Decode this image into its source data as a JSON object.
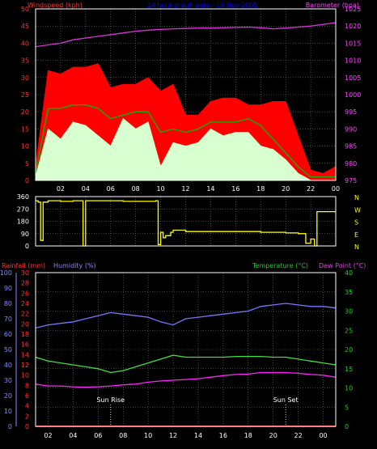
{
  "chart_data": [
    {
      "type": "line",
      "title": "24 hour graph data - 18 Nov 2005",
      "ylabel_left": "Windspeed (kph)",
      "ylabel_right": "Barometer (hpa)",
      "ylim_left": [
        0,
        50
      ],
      "ylim_right": [
        975,
        1025
      ],
      "left_ticks": [
        0,
        5,
        10,
        15,
        20,
        25,
        30,
        35,
        40,
        45,
        50
      ],
      "right_ticks": [
        975,
        980,
        985,
        990,
        995,
        1000,
        1005,
        1010,
        1015,
        1020,
        1025
      ],
      "x_ticks": [
        "02",
        "04",
        "06",
        "08",
        "10",
        "12",
        "14",
        "16",
        "18",
        "20",
        "22",
        "00"
      ],
      "x": [
        0,
        1,
        2,
        3,
        4,
        5,
        6,
        7,
        8,
        9,
        10,
        11,
        12,
        13,
        14,
        15,
        16,
        17,
        18,
        19,
        20,
        21,
        22,
        23,
        24
      ],
      "series": [
        {
          "key": "gust",
          "color": "#ff0000",
          "values": [
            4,
            32,
            31,
            33,
            33,
            34,
            27,
            28,
            28,
            30,
            26,
            28,
            19,
            19,
            23,
            24,
            24,
            22,
            22,
            23,
            23,
            13,
            3,
            2,
            4
          ]
        },
        {
          "key": "avg",
          "color": "#00bb00",
          "values": [
            2,
            21,
            21,
            22,
            22,
            21,
            18,
            19,
            20,
            20,
            14,
            15,
            14,
            15,
            17,
            17,
            17,
            18,
            16,
            12,
            8,
            4,
            1,
            1,
            1
          ]
        },
        {
          "key": "wind",
          "color": "#d8ffd0",
          "values": [
            1,
            15,
            12,
            17,
            16,
            13,
            10,
            18,
            15,
            17,
            4,
            11,
            10,
            11,
            15,
            13,
            14,
            14,
            10,
            9,
            6,
            2,
            0,
            0,
            0
          ]
        },
        {
          "key": "barometer",
          "color": "#dd33dd",
          "axis": "right",
          "values": [
            1014,
            1014.5,
            1015,
            1016,
            1016.5,
            1017,
            1017.5,
            1018,
            1018.5,
            1018.8,
            1019,
            1019.2,
            1019.3,
            1019.4,
            1019.4,
            1019.5,
            1019.6,
            1019.7,
            1019.5,
            1019.2,
            1019.4,
            1019.7,
            1020,
            1020.5,
            1021
          ]
        }
      ]
    },
    {
      "type": "line",
      "right_labels": [
        "N",
        "W",
        "S",
        "E",
        "N"
      ],
      "ylim": [
        0,
        360
      ],
      "left_ticks": [
        0,
        90,
        180,
        270,
        360
      ],
      "x": [
        0,
        0.2,
        0.4,
        0.6,
        1,
        2,
        3,
        3.6,
        3.8,
        4,
        5,
        6,
        7,
        8,
        9,
        9.6,
        9.8,
        10,
        10.2,
        10.4,
        10.8,
        11,
        12,
        13,
        14,
        15,
        16,
        17,
        18,
        19,
        20,
        21,
        21.6,
        22,
        22.3,
        22.5,
        23,
        24
      ],
      "series": [
        {
          "key": "direction",
          "color": "#ffff00",
          "values": [
            330,
            320,
            40,
            320,
            330,
            325,
            330,
            330,
            0,
            330,
            330,
            330,
            325,
            325,
            325,
            330,
            10,
            100,
            60,
            75,
            100,
            115,
            105,
            105,
            105,
            105,
            105,
            105,
            100,
            100,
            95,
            90,
            20,
            50,
            0,
            250,
            250,
            250
          ]
        }
      ]
    },
    {
      "type": "line",
      "ylabel_left_1": "Rainfall (mm)",
      "ylabel_left_2": "Humidity (%)",
      "ylabel_right": "Temperature (°C)",
      "ylabel_right_2": "Dew Point (°C)",
      "ylim_humidity": [
        0,
        100
      ],
      "ylim_rain": [
        0,
        30
      ],
      "ylim_temp": [
        0,
        40
      ],
      "humidity_ticks": [
        0,
        10,
        20,
        30,
        40,
        50,
        60,
        70,
        80,
        90,
        100
      ],
      "rain_ticks": [
        0,
        2,
        4,
        6,
        8,
        10,
        12,
        14,
        16,
        18,
        20,
        22,
        24,
        26,
        28,
        30
      ],
      "temp_ticks": [
        0,
        5,
        10,
        15,
        20,
        25,
        30,
        35,
        40
      ],
      "annotations": [
        {
          "text": "Sun Rise",
          "x": 6
        },
        {
          "text": "Sun Set",
          "x": 20
        }
      ],
      "x": [
        0,
        1,
        2,
        3,
        4,
        5,
        6,
        7,
        8,
        9,
        10,
        11,
        12,
        13,
        14,
        15,
        16,
        17,
        18,
        19,
        20,
        21,
        22,
        23,
        24
      ],
      "series": [
        {
          "key": "humidity",
          "color": "#7777ff",
          "values": [
            64,
            66,
            67,
            68,
            70,
            72,
            74,
            73,
            72,
            71,
            68,
            66,
            70,
            71,
            72,
            73,
            74,
            75,
            78,
            79,
            80,
            79,
            78,
            78,
            77
          ]
        },
        {
          "key": "temperature",
          "color": "#44dd44",
          "values": [
            18,
            17,
            16.5,
            16,
            15.5,
            15,
            14,
            14.5,
            15.5,
            16.5,
            17.5,
            18.5,
            18,
            18,
            18,
            18,
            18.2,
            18.2,
            18.2,
            18,
            18,
            17.5,
            17,
            16.5,
            16
          ]
        },
        {
          "key": "dewpoint",
          "color": "#ff22ff",
          "values": [
            11,
            10.5,
            10.5,
            10.3,
            10.2,
            10.3,
            10.5,
            10.8,
            11,
            11.5,
            11.8,
            12,
            12.2,
            12.4,
            12.8,
            13.2,
            13.5,
            13.6,
            14,
            14,
            14,
            13.8,
            13.5,
            13.3,
            12.8
          ]
        },
        {
          "key": "rainfall",
          "color": "#ff0000",
          "values": [
            0,
            0,
            0,
            0,
            0,
            0,
            0,
            0,
            0,
            0,
            0,
            0,
            0,
            0,
            0,
            0,
            0,
            0,
            0,
            0,
            0,
            0,
            0,
            0,
            0
          ]
        }
      ]
    }
  ],
  "colors": {
    "background": "#000000",
    "axis": "#ffffff",
    "grid": "#7a7a7a",
    "windspeed_label": "#ff3333",
    "title": "#0000ff",
    "barometer_label": "#ff44ff",
    "direction_label": "#ffff00",
    "rain_label": "#ff3333",
    "humidity_label": "#8888ff",
    "temp_label": "#22cc22",
    "dew_label": "#dd44dd",
    "x_tick_label": "#ffffff"
  }
}
